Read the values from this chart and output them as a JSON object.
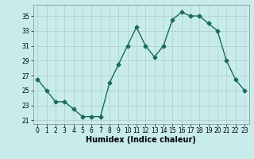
{
  "x": [
    0,
    1,
    2,
    3,
    4,
    5,
    6,
    7,
    8,
    9,
    10,
    11,
    12,
    13,
    14,
    15,
    16,
    17,
    18,
    19,
    20,
    21,
    22,
    23
  ],
  "y": [
    26.5,
    25.0,
    23.5,
    23.5,
    22.5,
    21.5,
    21.5,
    21.5,
    26.0,
    28.5,
    31.0,
    33.5,
    31.0,
    29.5,
    31.0,
    34.5,
    35.5,
    35.0,
    35.0,
    34.0,
    33.0,
    29.0,
    26.5,
    25.0
  ],
  "xlabel": "Humidex (Indice chaleur)",
  "ylim": [
    20.5,
    36.5
  ],
  "xlim": [
    -0.5,
    23.5
  ],
  "yticks": [
    21,
    23,
    25,
    27,
    29,
    31,
    33,
    35
  ],
  "xticks": [
    0,
    1,
    2,
    3,
    4,
    5,
    6,
    7,
    8,
    9,
    10,
    11,
    12,
    13,
    14,
    15,
    16,
    17,
    18,
    19,
    20,
    21,
    22,
    23
  ],
  "line_color": "#1a6b5a",
  "marker": "D",
  "marker_size": 2.5,
  "bg_color": "#c8ecec",
  "grid_color": "#b0cccc",
  "line_width": 1.0,
  "xlabel_fontsize": 7,
  "tick_fontsize": 5.5
}
